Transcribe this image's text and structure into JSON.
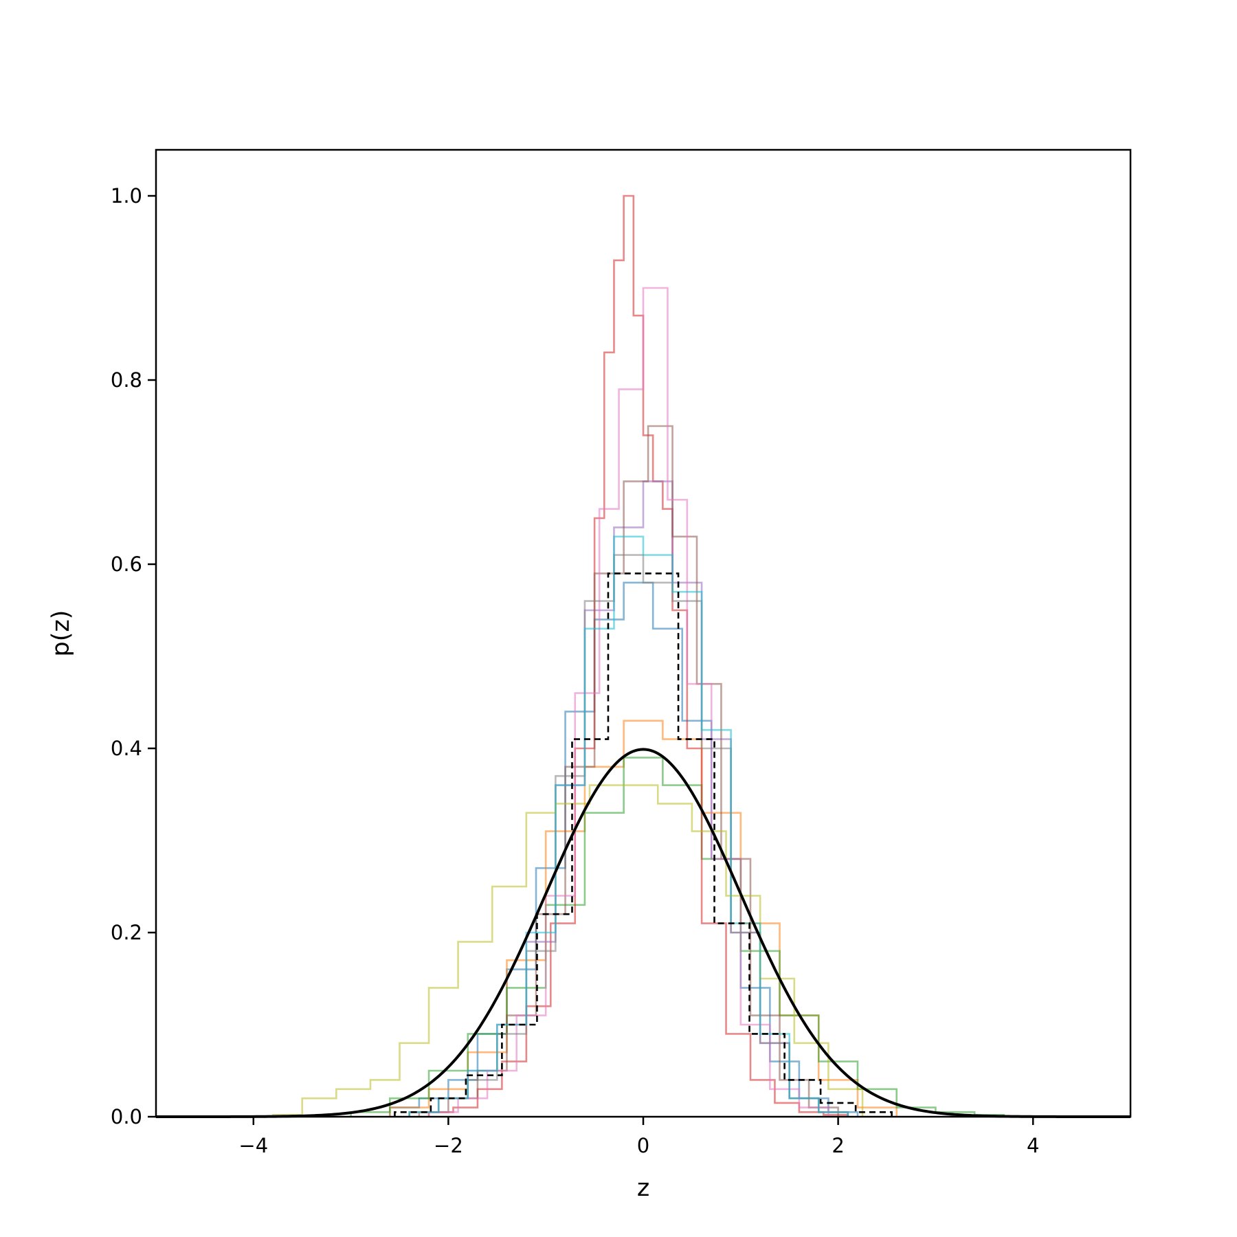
{
  "chart_data": {
    "type": "line",
    "title": "",
    "xlabel": "z",
    "ylabel": "p(z)",
    "xlim": [
      -5,
      5
    ],
    "ylim": [
      0,
      1.05
    ],
    "grid": false,
    "xticks": [
      -4,
      -2,
      0,
      2,
      4
    ],
    "xtick_labels": [
      "−4",
      "−2",
      "0",
      "2",
      "4"
    ],
    "yticks": [
      0.0,
      0.2,
      0.4,
      0.6,
      0.8,
      1.0
    ],
    "ytick_labels": [
      "0.0",
      "0.2",
      "0.4",
      "0.6",
      "0.8",
      "1.0"
    ],
    "histograms": [
      {
        "color": "#1f77b4",
        "edges": [
          -2.6,
          -2.3,
          -2.0,
          -1.7,
          -1.4,
          -1.1,
          -0.8,
          -0.5,
          -0.2,
          0.1,
          0.4,
          0.7,
          1.0,
          1.3,
          1.6,
          1.9,
          2.2
        ],
        "values": [
          0.01,
          0.02,
          0.04,
          0.09,
          0.16,
          0.27,
          0.44,
          0.54,
          0.58,
          0.53,
          0.43,
          0.28,
          0.14,
          0.06,
          0.02,
          0.005
        ]
      },
      {
        "color": "#ff7f0e",
        "edges": [
          -2.6,
          -2.2,
          -1.8,
          -1.4,
          -1.0,
          -0.6,
          -0.2,
          0.2,
          0.6,
          1.0,
          1.4,
          1.8,
          2.2,
          2.6
        ],
        "values": [
          0.01,
          0.03,
          0.07,
          0.17,
          0.31,
          0.38,
          0.43,
          0.41,
          0.33,
          0.21,
          0.11,
          0.04,
          0.01
        ]
      },
      {
        "color": "#2ca02c",
        "edges": [
          -3.0,
          -2.6,
          -2.2,
          -1.8,
          -1.4,
          -1.0,
          -0.6,
          -0.2,
          0.2,
          0.6,
          1.0,
          1.4,
          1.8,
          2.2,
          2.6,
          3.0,
          3.4,
          3.7
        ],
        "values": [
          0.005,
          0.02,
          0.05,
          0.09,
          0.14,
          0.23,
          0.33,
          0.39,
          0.36,
          0.28,
          0.18,
          0.11,
          0.06,
          0.03,
          0.01,
          0.005,
          0.002
        ]
      },
      {
        "color": "#d62728",
        "edges": [
          -2.2,
          -1.95,
          -1.7,
          -1.45,
          -1.2,
          -0.95,
          -0.7,
          -0.5,
          -0.4,
          -0.3,
          -0.2,
          -0.1,
          0.0,
          0.1,
          0.2,
          0.3,
          0.45,
          0.6,
          0.85,
          1.1,
          1.35,
          1.6,
          1.85,
          2.1
        ],
        "values": [
          0.005,
          0.01,
          0.03,
          0.06,
          0.12,
          0.21,
          0.4,
          0.65,
          0.83,
          0.93,
          1.0,
          0.87,
          0.74,
          0.69,
          0.66,
          0.55,
          0.4,
          0.21,
          0.09,
          0.04,
          0.015,
          0.005,
          0.002
        ]
      },
      {
        "color": "#9467bd",
        "edges": [
          -2.4,
          -2.1,
          -1.8,
          -1.5,
          -1.2,
          -0.9,
          -0.6,
          -0.3,
          0.0,
          0.3,
          0.6,
          0.9,
          1.2,
          1.5,
          1.8,
          2.1
        ],
        "values": [
          0.005,
          0.02,
          0.05,
          0.1,
          0.19,
          0.36,
          0.55,
          0.64,
          0.69,
          0.58,
          0.41,
          0.2,
          0.08,
          0.02,
          0.005
        ]
      },
      {
        "color": "#8c564b",
        "edges": [
          -2.3,
          -2.0,
          -1.7,
          -1.4,
          -1.1,
          -0.8,
          -0.5,
          -0.2,
          0.05,
          0.3,
          0.55,
          0.8,
          1.1,
          1.4,
          1.7,
          2.0
        ],
        "values": [
          0.005,
          0.02,
          0.05,
          0.11,
          0.22,
          0.38,
          0.59,
          0.69,
          0.75,
          0.63,
          0.47,
          0.28,
          0.11,
          0.04,
          0.01
        ]
      },
      {
        "color": "#e377c2",
        "edges": [
          -2.2,
          -1.9,
          -1.6,
          -1.3,
          -1.0,
          -0.7,
          -0.45,
          -0.25,
          0.0,
          0.25,
          0.45,
          0.7,
          1.0,
          1.3,
          1.6,
          1.9
        ],
        "values": [
          0.005,
          0.02,
          0.05,
          0.11,
          0.24,
          0.46,
          0.66,
          0.79,
          0.9,
          0.67,
          0.47,
          0.28,
          0.1,
          0.03,
          0.01
        ]
      },
      {
        "color": "#7f7f7f",
        "edges": [
          -2.4,
          -2.1,
          -1.8,
          -1.5,
          -1.2,
          -0.9,
          -0.6,
          -0.3,
          0.0,
          0.3,
          0.6,
          0.9,
          1.2,
          1.5,
          1.8,
          2.1
        ],
        "values": [
          0.005,
          0.02,
          0.04,
          0.09,
          0.18,
          0.37,
          0.56,
          0.61,
          0.58,
          0.56,
          0.4,
          0.2,
          0.08,
          0.02,
          0.005
        ]
      },
      {
        "color": "#bcbd22",
        "edges": [
          -3.8,
          -3.5,
          -3.15,
          -2.8,
          -2.5,
          -2.2,
          -1.9,
          -1.55,
          -1.2,
          -0.9,
          -0.55,
          -0.2,
          0.15,
          0.5,
          0.85,
          1.2,
          1.55,
          1.9,
          2.25
        ],
        "values": [
          0.002,
          0.02,
          0.03,
          0.04,
          0.08,
          0.14,
          0.19,
          0.25,
          0.33,
          0.34,
          0.36,
          0.36,
          0.34,
          0.31,
          0.24,
          0.15,
          0.08,
          0.03
        ]
      },
      {
        "color": "#17becf",
        "edges": [
          -2.4,
          -2.1,
          -1.8,
          -1.5,
          -1.2,
          -0.9,
          -0.6,
          -0.3,
          0.0,
          0.3,
          0.6,
          0.9,
          1.2,
          1.5,
          1.8,
          2.1
        ],
        "values": [
          0.005,
          0.02,
          0.05,
          0.1,
          0.2,
          0.36,
          0.53,
          0.63,
          0.61,
          0.57,
          0.42,
          0.21,
          0.09,
          0.02,
          0.005
        ]
      }
    ],
    "mean_histogram": {
      "color": "#000000",
      "style": "dashed",
      "edges": [
        -2.55,
        -2.18,
        -1.82,
        -1.45,
        -1.09,
        -0.73,
        -0.36,
        0.0,
        0.36,
        0.73,
        1.09,
        1.45,
        1.82,
        2.18,
        2.55
      ],
      "values": [
        0.005,
        0.02,
        0.045,
        0.1,
        0.22,
        0.41,
        0.59,
        0.59,
        0.41,
        0.21,
        0.09,
        0.04,
        0.015,
        0.005
      ]
    },
    "reference_curve": {
      "type": "normal_pdf",
      "mean": 0,
      "std": 1,
      "peak": 0.399,
      "color": "#000000"
    }
  }
}
